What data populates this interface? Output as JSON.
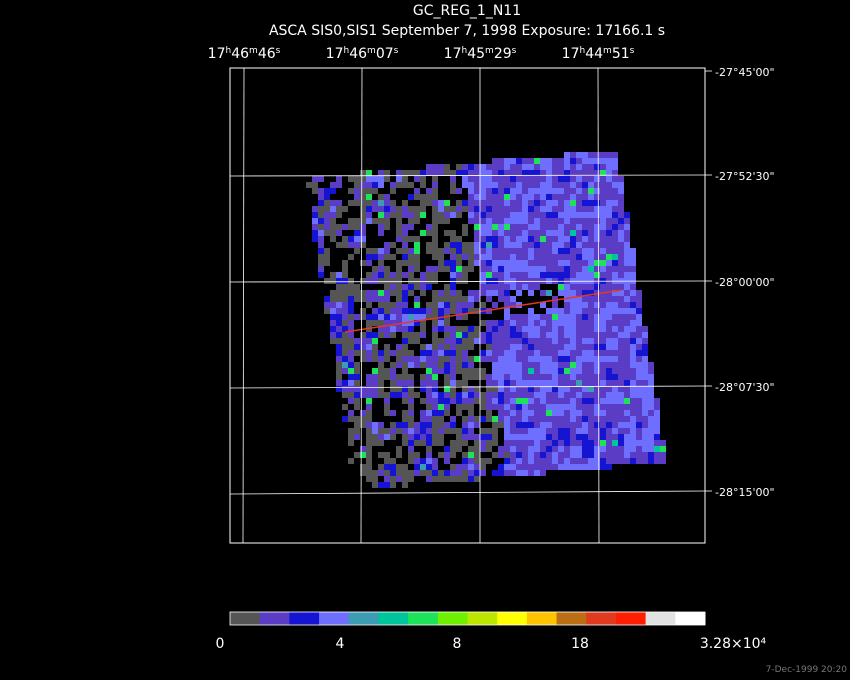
{
  "header": {
    "title": "GC_REG_1_N11",
    "subtitle": "ASCA SIS0,SIS1 September 7, 1998 Exposure: 17166.1 s"
  },
  "ra_labels": [
    "17h46m46s",
    "17h46m07s",
    "17h45m29s",
    "17h44m51s"
  ],
  "dec_labels": [
    "-27°45'00\"",
    "-27°52'30\"",
    "-28°00'00\"",
    "-28°07'30\"",
    "-28°15'00\""
  ],
  "colorbar": {
    "colors": [
      "#555555",
      "#5b3cc4",
      "#1414d2",
      "#6e6eff",
      "#3c9cb4",
      "#00c49c",
      "#1ee25a",
      "#6ef000",
      "#bce600",
      "#ffff00",
      "#ffc400",
      "#bc6e14",
      "#e23a1e",
      "#ff1e00",
      "#e2e2e2",
      "#ffffff"
    ],
    "labels": [
      "0",
      "4",
      "8",
      "18",
      "3.28×10⁴"
    ]
  },
  "timestamp": "7-Dec-1999 20:20"
}
